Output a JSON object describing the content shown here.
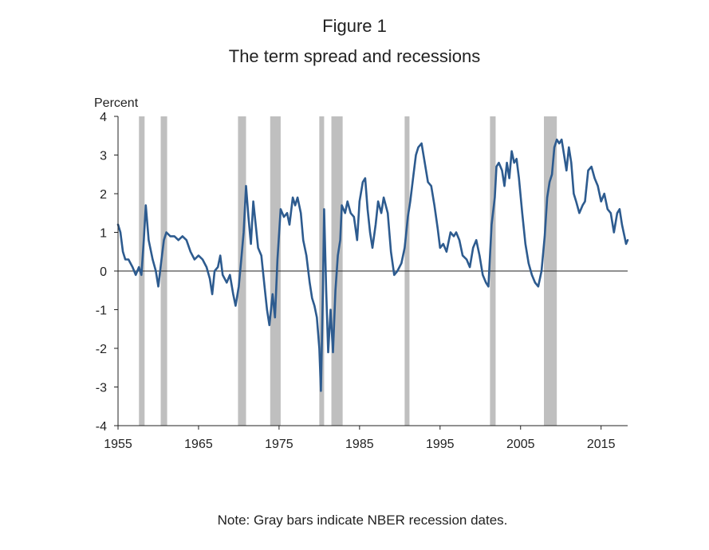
{
  "figure": {
    "title": "Figure 1",
    "subtitle": "The term spread and recessions",
    "note": "Note: Gray bars indicate NBER recession dates."
  },
  "chart_data": {
    "type": "line",
    "ylabel": "Percent",
    "xlim": [
      1955,
      2018.3
    ],
    "ylim": [
      -4,
      4
    ],
    "xticks": [
      1955,
      1965,
      1975,
      1985,
      1995,
      2005,
      2015
    ],
    "yticks": [
      4,
      3,
      2,
      1,
      0,
      -1,
      -2,
      -3,
      -4
    ],
    "recessions": [
      [
        1957.6,
        1958.3
      ],
      [
        1960.3,
        1961.1
      ],
      [
        1969.9,
        1970.9
      ],
      [
        1973.9,
        1975.2
      ],
      [
        1980.0,
        1980.6
      ],
      [
        1981.5,
        1982.9
      ],
      [
        1990.6,
        1991.2
      ],
      [
        2001.2,
        2001.9
      ],
      [
        2007.9,
        2009.5
      ]
    ],
    "colors": {
      "line": "#2d5b8f",
      "recession": "#bfbfbf",
      "zero_line": "#222222",
      "axis": "#222222"
    },
    "series": [
      {
        "values": [
          [
            1955.0,
            1.2
          ],
          [
            1955.3,
            1.0
          ],
          [
            1955.6,
            0.5
          ],
          [
            1955.9,
            0.3
          ],
          [
            1956.3,
            0.3
          ],
          [
            1956.8,
            0.1
          ],
          [
            1957.2,
            -0.1
          ],
          [
            1957.6,
            0.1
          ],
          [
            1957.9,
            -0.1
          ],
          [
            1958.2,
            0.8
          ],
          [
            1958.45,
            1.7
          ],
          [
            1958.8,
            0.8
          ],
          [
            1959.3,
            0.3
          ],
          [
            1959.7,
            0.0
          ],
          [
            1960.0,
            -0.4
          ],
          [
            1960.4,
            0.3
          ],
          [
            1960.7,
            0.8
          ],
          [
            1961.0,
            1.0
          ],
          [
            1961.5,
            0.9
          ],
          [
            1962.0,
            0.9
          ],
          [
            1962.5,
            0.8
          ],
          [
            1963.0,
            0.9
          ],
          [
            1963.5,
            0.8
          ],
          [
            1964.0,
            0.5
          ],
          [
            1964.5,
            0.3
          ],
          [
            1965.0,
            0.4
          ],
          [
            1965.5,
            0.3
          ],
          [
            1966.0,
            0.1
          ],
          [
            1966.4,
            -0.2
          ],
          [
            1966.7,
            -0.6
          ],
          [
            1967.0,
            0.0
          ],
          [
            1967.4,
            0.1
          ],
          [
            1967.7,
            0.4
          ],
          [
            1968.0,
            -0.1
          ],
          [
            1968.5,
            -0.3
          ],
          [
            1968.9,
            -0.1
          ],
          [
            1969.3,
            -0.6
          ],
          [
            1969.6,
            -0.9
          ],
          [
            1970.0,
            -0.4
          ],
          [
            1970.3,
            0.3
          ],
          [
            1970.6,
            1.0
          ],
          [
            1970.9,
            2.2
          ],
          [
            1971.2,
            1.4
          ],
          [
            1971.5,
            0.7
          ],
          [
            1971.8,
            1.8
          ],
          [
            1972.1,
            1.2
          ],
          [
            1972.4,
            0.6
          ],
          [
            1972.8,
            0.4
          ],
          [
            1973.2,
            -0.4
          ],
          [
            1973.5,
            -1.0
          ],
          [
            1973.8,
            -1.4
          ],
          [
            1974.2,
            -0.6
          ],
          [
            1974.5,
            -1.2
          ],
          [
            1974.8,
            0.3
          ],
          [
            1975.2,
            1.6
          ],
          [
            1975.6,
            1.4
          ],
          [
            1976.0,
            1.5
          ],
          [
            1976.3,
            1.2
          ],
          [
            1976.7,
            1.9
          ],
          [
            1977.0,
            1.7
          ],
          [
            1977.3,
            1.9
          ],
          [
            1977.7,
            1.5
          ],
          [
            1978.0,
            0.8
          ],
          [
            1978.4,
            0.4
          ],
          [
            1978.8,
            -0.3
          ],
          [
            1979.1,
            -0.7
          ],
          [
            1979.4,
            -0.9
          ],
          [
            1979.7,
            -1.2
          ],
          [
            1980.0,
            -2.0
          ],
          [
            1980.2,
            -3.1
          ],
          [
            1980.45,
            -0.5
          ],
          [
            1980.6,
            1.6
          ],
          [
            1980.85,
            -0.5
          ],
          [
            1981.1,
            -2.1
          ],
          [
            1981.4,
            -1.0
          ],
          [
            1981.7,
            -2.1
          ],
          [
            1982.0,
            -0.5
          ],
          [
            1982.3,
            0.4
          ],
          [
            1982.6,
            0.8
          ],
          [
            1982.8,
            1.7
          ],
          [
            1983.2,
            1.5
          ],
          [
            1983.5,
            1.8
          ],
          [
            1983.9,
            1.5
          ],
          [
            1984.3,
            1.4
          ],
          [
            1984.7,
            0.8
          ],
          [
            1985.0,
            1.8
          ],
          [
            1985.4,
            2.3
          ],
          [
            1985.7,
            2.4
          ],
          [
            1986.0,
            1.6
          ],
          [
            1986.3,
            1.0
          ],
          [
            1986.6,
            0.6
          ],
          [
            1987.0,
            1.2
          ],
          [
            1987.3,
            1.8
          ],
          [
            1987.7,
            1.5
          ],
          [
            1988.0,
            1.9
          ],
          [
            1988.5,
            1.5
          ],
          [
            1988.9,
            0.5
          ],
          [
            1989.3,
            -0.1
          ],
          [
            1989.7,
            0.0
          ],
          [
            1990.2,
            0.2
          ],
          [
            1990.6,
            0.6
          ],
          [
            1991.0,
            1.4
          ],
          [
            1991.3,
            1.8
          ],
          [
            1991.7,
            2.5
          ],
          [
            1992.0,
            3.0
          ],
          [
            1992.3,
            3.2
          ],
          [
            1992.7,
            3.3
          ],
          [
            1993.1,
            2.8
          ],
          [
            1993.5,
            2.3
          ],
          [
            1993.9,
            2.2
          ],
          [
            1994.3,
            1.7
          ],
          [
            1994.7,
            1.1
          ],
          [
            1995.0,
            0.6
          ],
          [
            1995.4,
            0.7
          ],
          [
            1995.8,
            0.5
          ],
          [
            1996.3,
            1.0
          ],
          [
            1996.7,
            0.9
          ],
          [
            1997.0,
            1.0
          ],
          [
            1997.4,
            0.8
          ],
          [
            1997.8,
            0.4
          ],
          [
            1998.3,
            0.3
          ],
          [
            1998.7,
            0.1
          ],
          [
            1999.1,
            0.6
          ],
          [
            1999.5,
            0.8
          ],
          [
            1999.9,
            0.4
          ],
          [
            2000.3,
            -0.1
          ],
          [
            2000.7,
            -0.3
          ],
          [
            2001.0,
            -0.4
          ],
          [
            2001.4,
            1.2
          ],
          [
            2001.8,
            1.9
          ],
          [
            2002.0,
            2.7
          ],
          [
            2002.3,
            2.8
          ],
          [
            2002.7,
            2.6
          ],
          [
            2003.0,
            2.2
          ],
          [
            2003.3,
            2.8
          ],
          [
            2003.6,
            2.4
          ],
          [
            2003.9,
            3.1
          ],
          [
            2004.2,
            2.8
          ],
          [
            2004.5,
            2.9
          ],
          [
            2004.8,
            2.4
          ],
          [
            2005.2,
            1.5
          ],
          [
            2005.6,
            0.7
          ],
          [
            2006.0,
            0.2
          ],
          [
            2006.4,
            -0.1
          ],
          [
            2006.8,
            -0.3
          ],
          [
            2007.2,
            -0.4
          ],
          [
            2007.6,
            0.0
          ],
          [
            2008.0,
            0.9
          ],
          [
            2008.3,
            1.9
          ],
          [
            2008.6,
            2.3
          ],
          [
            2008.9,
            2.5
          ],
          [
            2009.2,
            3.2
          ],
          [
            2009.5,
            3.4
          ],
          [
            2009.8,
            3.3
          ],
          [
            2010.1,
            3.4
          ],
          [
            2010.4,
            3.0
          ],
          [
            2010.7,
            2.6
          ],
          [
            2011.0,
            3.2
          ],
          [
            2011.3,
            2.8
          ],
          [
            2011.6,
            2.0
          ],
          [
            2011.9,
            1.8
          ],
          [
            2012.3,
            1.5
          ],
          [
            2012.7,
            1.7
          ],
          [
            2013.0,
            1.8
          ],
          [
            2013.4,
            2.6
          ],
          [
            2013.8,
            2.7
          ],
          [
            2014.2,
            2.4
          ],
          [
            2014.6,
            2.2
          ],
          [
            2015.0,
            1.8
          ],
          [
            2015.4,
            2.0
          ],
          [
            2015.8,
            1.6
          ],
          [
            2016.2,
            1.5
          ],
          [
            2016.6,
            1.0
          ],
          [
            2017.0,
            1.5
          ],
          [
            2017.3,
            1.6
          ],
          [
            2017.6,
            1.2
          ],
          [
            2017.9,
            0.9
          ],
          [
            2018.1,
            0.7
          ],
          [
            2018.3,
            0.8
          ]
        ]
      }
    ]
  }
}
